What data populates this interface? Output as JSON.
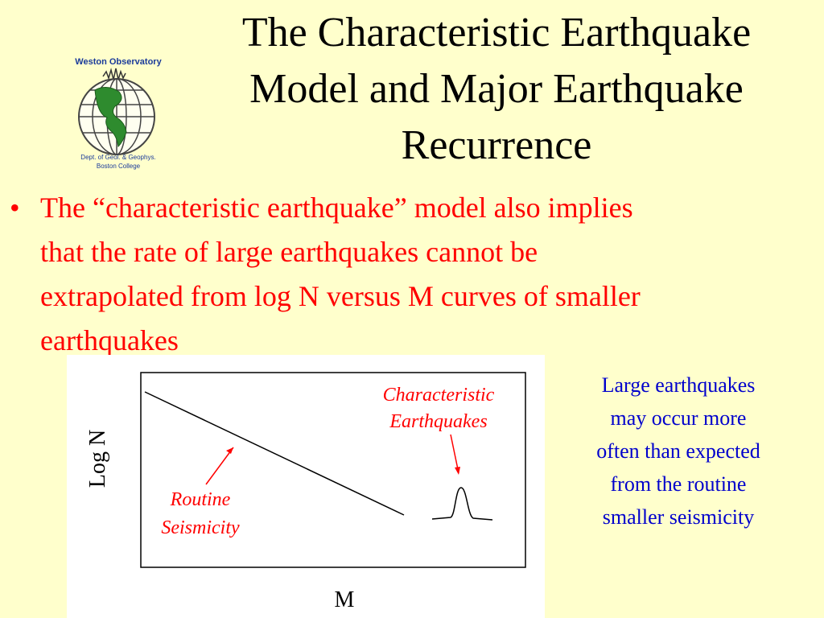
{
  "header": {
    "title_lines": [
      "The Characteristic Earthquake",
      "Model and Major Earthquake",
      "Recurrence"
    ]
  },
  "logo": {
    "name": "Weston Observatory",
    "dept": "Dept. of Geol. & Geophys.",
    "school": "Boston College"
  },
  "bullet": {
    "lines": [
      "The “characteristic earthquake” model also implies",
      "that the rate of large earthquakes cannot be",
      "extrapolated from log N versus M curves of smaller",
      "earthquakes"
    ]
  },
  "diagram": {
    "y_label": "Log N",
    "x_label": "M",
    "characteristic_label": [
      "Characteristic",
      "Earthquakes"
    ],
    "routine_label": [
      "Routine",
      "Seismicity"
    ]
  },
  "note": {
    "lines": [
      "Large earthquakes",
      "may occur more",
      "often than expected",
      "from the routine",
      "smaller seismicity"
    ]
  }
}
